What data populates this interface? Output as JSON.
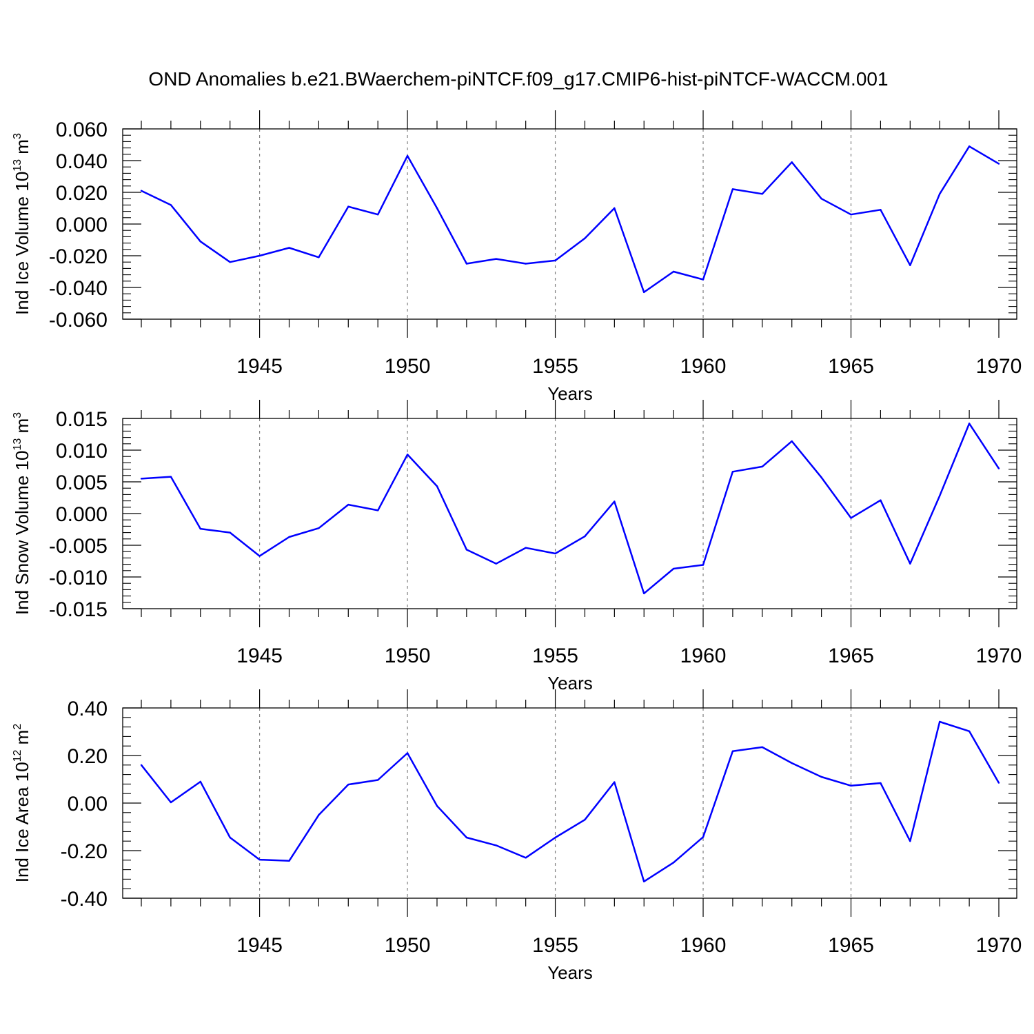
{
  "title": "OND Anomalies b.e21.BWaerchem-piNTCF.f09_g17.CMIP6-hist-piNTCF-WACCM.001",
  "colors": {
    "line": "#0000ff",
    "axis": "#000000",
    "grid": "#808080"
  },
  "chart_data": [
    {
      "type": "line",
      "ylabel": {
        "main": "Ind Ice Volume 10",
        "exp": "13",
        "unit": " m",
        "unit_exp": "3"
      },
      "xlabel": "Years",
      "xlim": [
        1941,
        1970
      ],
      "ylim": [
        -0.06,
        0.06
      ],
      "yticks": [
        -0.06,
        -0.04,
        -0.02,
        0.0,
        0.02,
        0.04,
        0.06
      ],
      "ytick_labels": [
        "-0.060",
        "-0.040",
        "-0.020",
        "0.000",
        "0.020",
        "0.040",
        "0.060"
      ],
      "xticks": [
        1945,
        1950,
        1955,
        1960,
        1965,
        1970
      ],
      "xtick_labels": [
        "1945",
        "1950",
        "1955",
        "1960",
        "1965",
        "1970"
      ],
      "grid_x": [
        1945,
        1950,
        1955,
        1960,
        1965
      ],
      "x": [
        1941,
        1942,
        1943,
        1944,
        1945,
        1946,
        1947,
        1948,
        1949,
        1950,
        1951,
        1952,
        1953,
        1954,
        1955,
        1956,
        1957,
        1958,
        1959,
        1960,
        1961,
        1962,
        1963,
        1964,
        1965,
        1966,
        1967,
        1968,
        1969,
        1970
      ],
      "y": [
        0.021,
        0.012,
        -0.011,
        -0.024,
        -0.02,
        -0.015,
        -0.021,
        0.011,
        0.006,
        0.043,
        0.01,
        -0.025,
        -0.022,
        -0.025,
        -0.023,
        -0.009,
        0.01,
        -0.043,
        -0.03,
        -0.035,
        0.022,
        0.019,
        0.039,
        0.016,
        0.006,
        0.009,
        -0.026,
        0.019,
        0.049,
        0.038
      ]
    },
    {
      "type": "line",
      "ylabel": {
        "main": "Ind Snow Volume 10",
        "exp": "13",
        "unit": " m",
        "unit_exp": "3"
      },
      "xlabel": "Years",
      "xlim": [
        1941,
        1970
      ],
      "ylim": [
        -0.015,
        0.015
      ],
      "yticks": [
        -0.015,
        -0.01,
        -0.005,
        0.0,
        0.005,
        0.01,
        0.015
      ],
      "ytick_labels": [
        "-0.015",
        "-0.010",
        "-0.005",
        "0.000",
        "0.005",
        "0.010",
        "0.015"
      ],
      "xticks": [
        1945,
        1950,
        1955,
        1960,
        1965,
        1970
      ],
      "xtick_labels": [
        "1945",
        "1950",
        "1955",
        "1960",
        "1965",
        "1970"
      ],
      "grid_x": [
        1945,
        1950,
        1955,
        1960,
        1965
      ],
      "x": [
        1941,
        1942,
        1943,
        1944,
        1945,
        1946,
        1947,
        1948,
        1949,
        1950,
        1951,
        1952,
        1953,
        1954,
        1955,
        1956,
        1957,
        1958,
        1959,
        1960,
        1961,
        1962,
        1963,
        1964,
        1965,
        1966,
        1967,
        1968,
        1969,
        1970
      ],
      "y": [
        0.0055,
        0.0058,
        -0.0024,
        -0.003,
        -0.0067,
        -0.0037,
        -0.0023,
        0.0014,
        0.0005,
        0.0093,
        0.0043,
        -0.0057,
        -0.0079,
        -0.0054,
        -0.0063,
        -0.0036,
        0.0019,
        -0.0126,
        -0.0087,
        -0.0081,
        0.0066,
        0.0074,
        0.0114,
        0.0057,
        -0.0007,
        0.0021,
        -0.0079,
        0.0028,
        0.0142,
        0.0071
      ]
    },
    {
      "type": "line",
      "ylabel": {
        "main": "Ind Ice Area 10",
        "exp": "12",
        "unit": " m",
        "unit_exp": "2"
      },
      "xlabel": "Years",
      "xlim": [
        1941,
        1970
      ],
      "ylim": [
        -0.4,
        0.4
      ],
      "yticks": [
        -0.4,
        -0.2,
        0.0,
        0.2,
        0.4
      ],
      "ytick_labels": [
        "-0.40",
        "-0.20",
        "0.00",
        "0.20",
        "0.40"
      ],
      "xticks": [
        1945,
        1950,
        1955,
        1960,
        1965,
        1970
      ],
      "xtick_labels": [
        "1945",
        "1950",
        "1955",
        "1960",
        "1965",
        "1970"
      ],
      "grid_x": [
        1945,
        1950,
        1955,
        1960,
        1965
      ],
      "x": [
        1941,
        1942,
        1943,
        1944,
        1945,
        1946,
        1947,
        1948,
        1949,
        1950,
        1951,
        1952,
        1953,
        1954,
        1955,
        1956,
        1957,
        1958,
        1959,
        1960,
        1961,
        1962,
        1963,
        1964,
        1965,
        1966,
        1967,
        1968,
        1969,
        1970
      ],
      "y": [
        0.16,
        0.003,
        0.09,
        -0.145,
        -0.238,
        -0.243,
        -0.05,
        0.078,
        0.097,
        0.21,
        -0.012,
        -0.145,
        -0.178,
        -0.23,
        -0.145,
        -0.07,
        0.088,
        -0.33,
        -0.25,
        -0.143,
        0.218,
        0.235,
        0.168,
        0.11,
        0.073,
        0.084,
        -0.16,
        0.342,
        0.302,
        0.085
      ]
    }
  ]
}
